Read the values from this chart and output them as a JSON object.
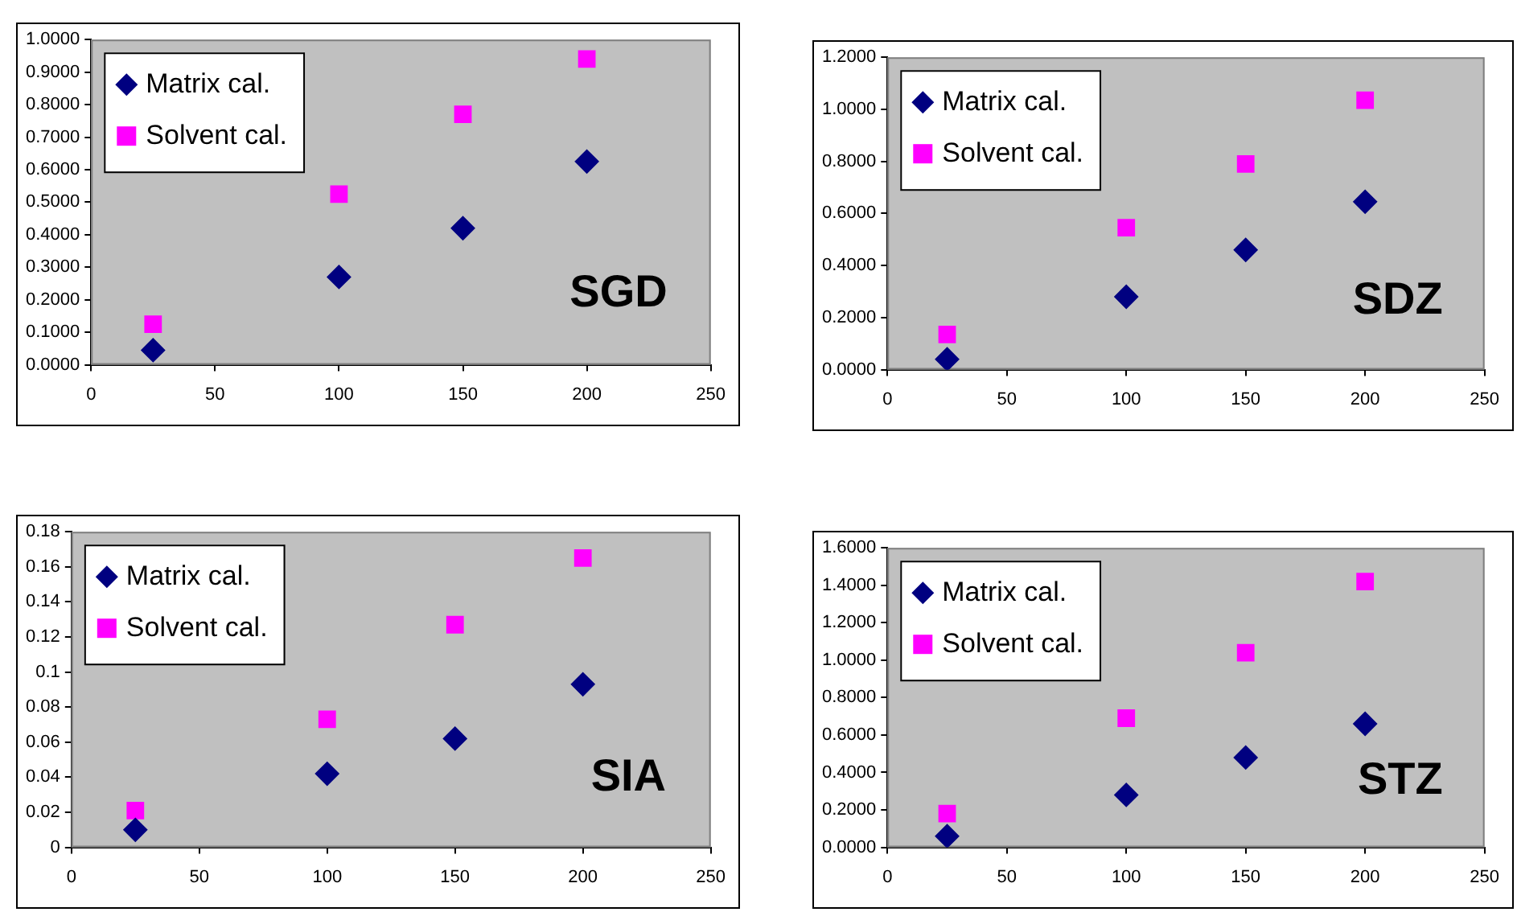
{
  "chart_data": [
    {
      "type": "scatter",
      "title": "SGD",
      "x": [
        25,
        100,
        150,
        200
      ],
      "xlim": [
        0,
        250
      ],
      "xticks": [
        0,
        50,
        100,
        150,
        200,
        250
      ],
      "ylim": [
        0,
        1
      ],
      "yticks": [
        {
          "value": 0,
          "label": "0.0000"
        },
        {
          "value": 0.1,
          "label": "0.1000"
        },
        {
          "value": 0.2,
          "label": "0.2000"
        },
        {
          "value": 0.3,
          "label": "0.3000"
        },
        {
          "value": 0.4,
          "label": "0.4000"
        },
        {
          "value": 0.5,
          "label": "0.5000"
        },
        {
          "value": 0.6,
          "label": "0.6000"
        },
        {
          "value": 0.7,
          "label": "0.7000"
        },
        {
          "value": 0.8,
          "label": "0.8000"
        },
        {
          "value": 0.9,
          "label": "0.9000"
        },
        {
          "value": 1,
          "label": "1.0000"
        }
      ],
      "grid": false,
      "legend": "top left",
      "series": [
        {
          "name": "Matrix cal.",
          "color": "#000080",
          "marker": "diamond",
          "values": [
            0.045,
            0.27,
            0.42,
            0.625
          ]
        },
        {
          "name": "Solvent cal.",
          "color": "#ff00ff",
          "marker": "square",
          "values": [
            0.125,
            0.525,
            0.77,
            0.94
          ]
        }
      ]
    },
    {
      "type": "scatter",
      "title": "SDZ",
      "x": [
        25,
        100,
        150,
        200
      ],
      "xlim": [
        0,
        250
      ],
      "xticks": [
        0,
        50,
        100,
        150,
        200,
        250
      ],
      "ylim": [
        0,
        1.2
      ],
      "yticks": [
        {
          "value": 0,
          "label": "0.0000"
        },
        {
          "value": 0.2,
          "label": "0.2000"
        },
        {
          "value": 0.4,
          "label": "0.4000"
        },
        {
          "value": 0.6,
          "label": "0.6000"
        },
        {
          "value": 0.8,
          "label": "0.8000"
        },
        {
          "value": 1,
          "label": "1.0000"
        },
        {
          "value": 1.2,
          "label": "1.2000"
        }
      ],
      "grid": false,
      "legend": "top left",
      "series": [
        {
          "name": "Matrix cal.",
          "color": "#000080",
          "marker": "diamond",
          "values": [
            0.04,
            0.28,
            0.46,
            0.645
          ]
        },
        {
          "name": "Solvent cal.",
          "color": "#ff00ff",
          "marker": "square",
          "values": [
            0.135,
            0.545,
            0.79,
            1.035
          ]
        }
      ]
    },
    {
      "type": "scatter",
      "title": "SIA",
      "x": [
        25,
        100,
        150,
        200
      ],
      "xlim": [
        0,
        250
      ],
      "xticks": [
        0,
        50,
        100,
        150,
        200,
        250
      ],
      "ylim": [
        0,
        0.18
      ],
      "yticks": [
        0,
        0.02,
        0.04,
        0.06,
        0.08,
        0.1,
        0.12,
        0.14,
        0.16,
        0.18
      ],
      "grid": false,
      "legend": "top left",
      "series": [
        {
          "name": "Matrix cal.",
          "color": "#000080",
          "marker": "diamond",
          "values": [
            0.01,
            0.042,
            0.062,
            0.093
          ]
        },
        {
          "name": "Solvent cal.",
          "color": "#ff00ff",
          "marker": "square",
          "values": [
            0.021,
            0.073,
            0.127,
            0.165
          ]
        }
      ]
    },
    {
      "type": "scatter",
      "title": "STZ",
      "x": [
        25,
        100,
        150,
        200
      ],
      "xlim": [
        0,
        250
      ],
      "xticks": [
        0,
        50,
        100,
        150,
        200,
        250
      ],
      "ylim": [
        0,
        1.6
      ],
      "yticks": [
        {
          "value": 0,
          "label": "0.0000"
        },
        {
          "value": 0.2,
          "label": "0.2000"
        },
        {
          "value": 0.4,
          "label": "0.4000"
        },
        {
          "value": 0.6,
          "label": "0.6000"
        },
        {
          "value": 0.8,
          "label": "0.8000"
        },
        {
          "value": 1,
          "label": "1.0000"
        },
        {
          "value": 1.2,
          "label": "1.2000"
        },
        {
          "value": 1.4,
          "label": "1.4000"
        },
        {
          "value": 1.6,
          "label": "1.6000"
        }
      ],
      "grid": false,
      "legend": "top left",
      "series": [
        {
          "name": "Matrix cal.",
          "color": "#000080",
          "marker": "diamond",
          "values": [
            0.06,
            0.28,
            0.48,
            0.66
          ]
        },
        {
          "name": "Solvent cal.",
          "color": "#ff00ff",
          "marker": "square",
          "values": [
            0.18,
            0.69,
            1.04,
            1.42
          ]
        }
      ]
    }
  ]
}
